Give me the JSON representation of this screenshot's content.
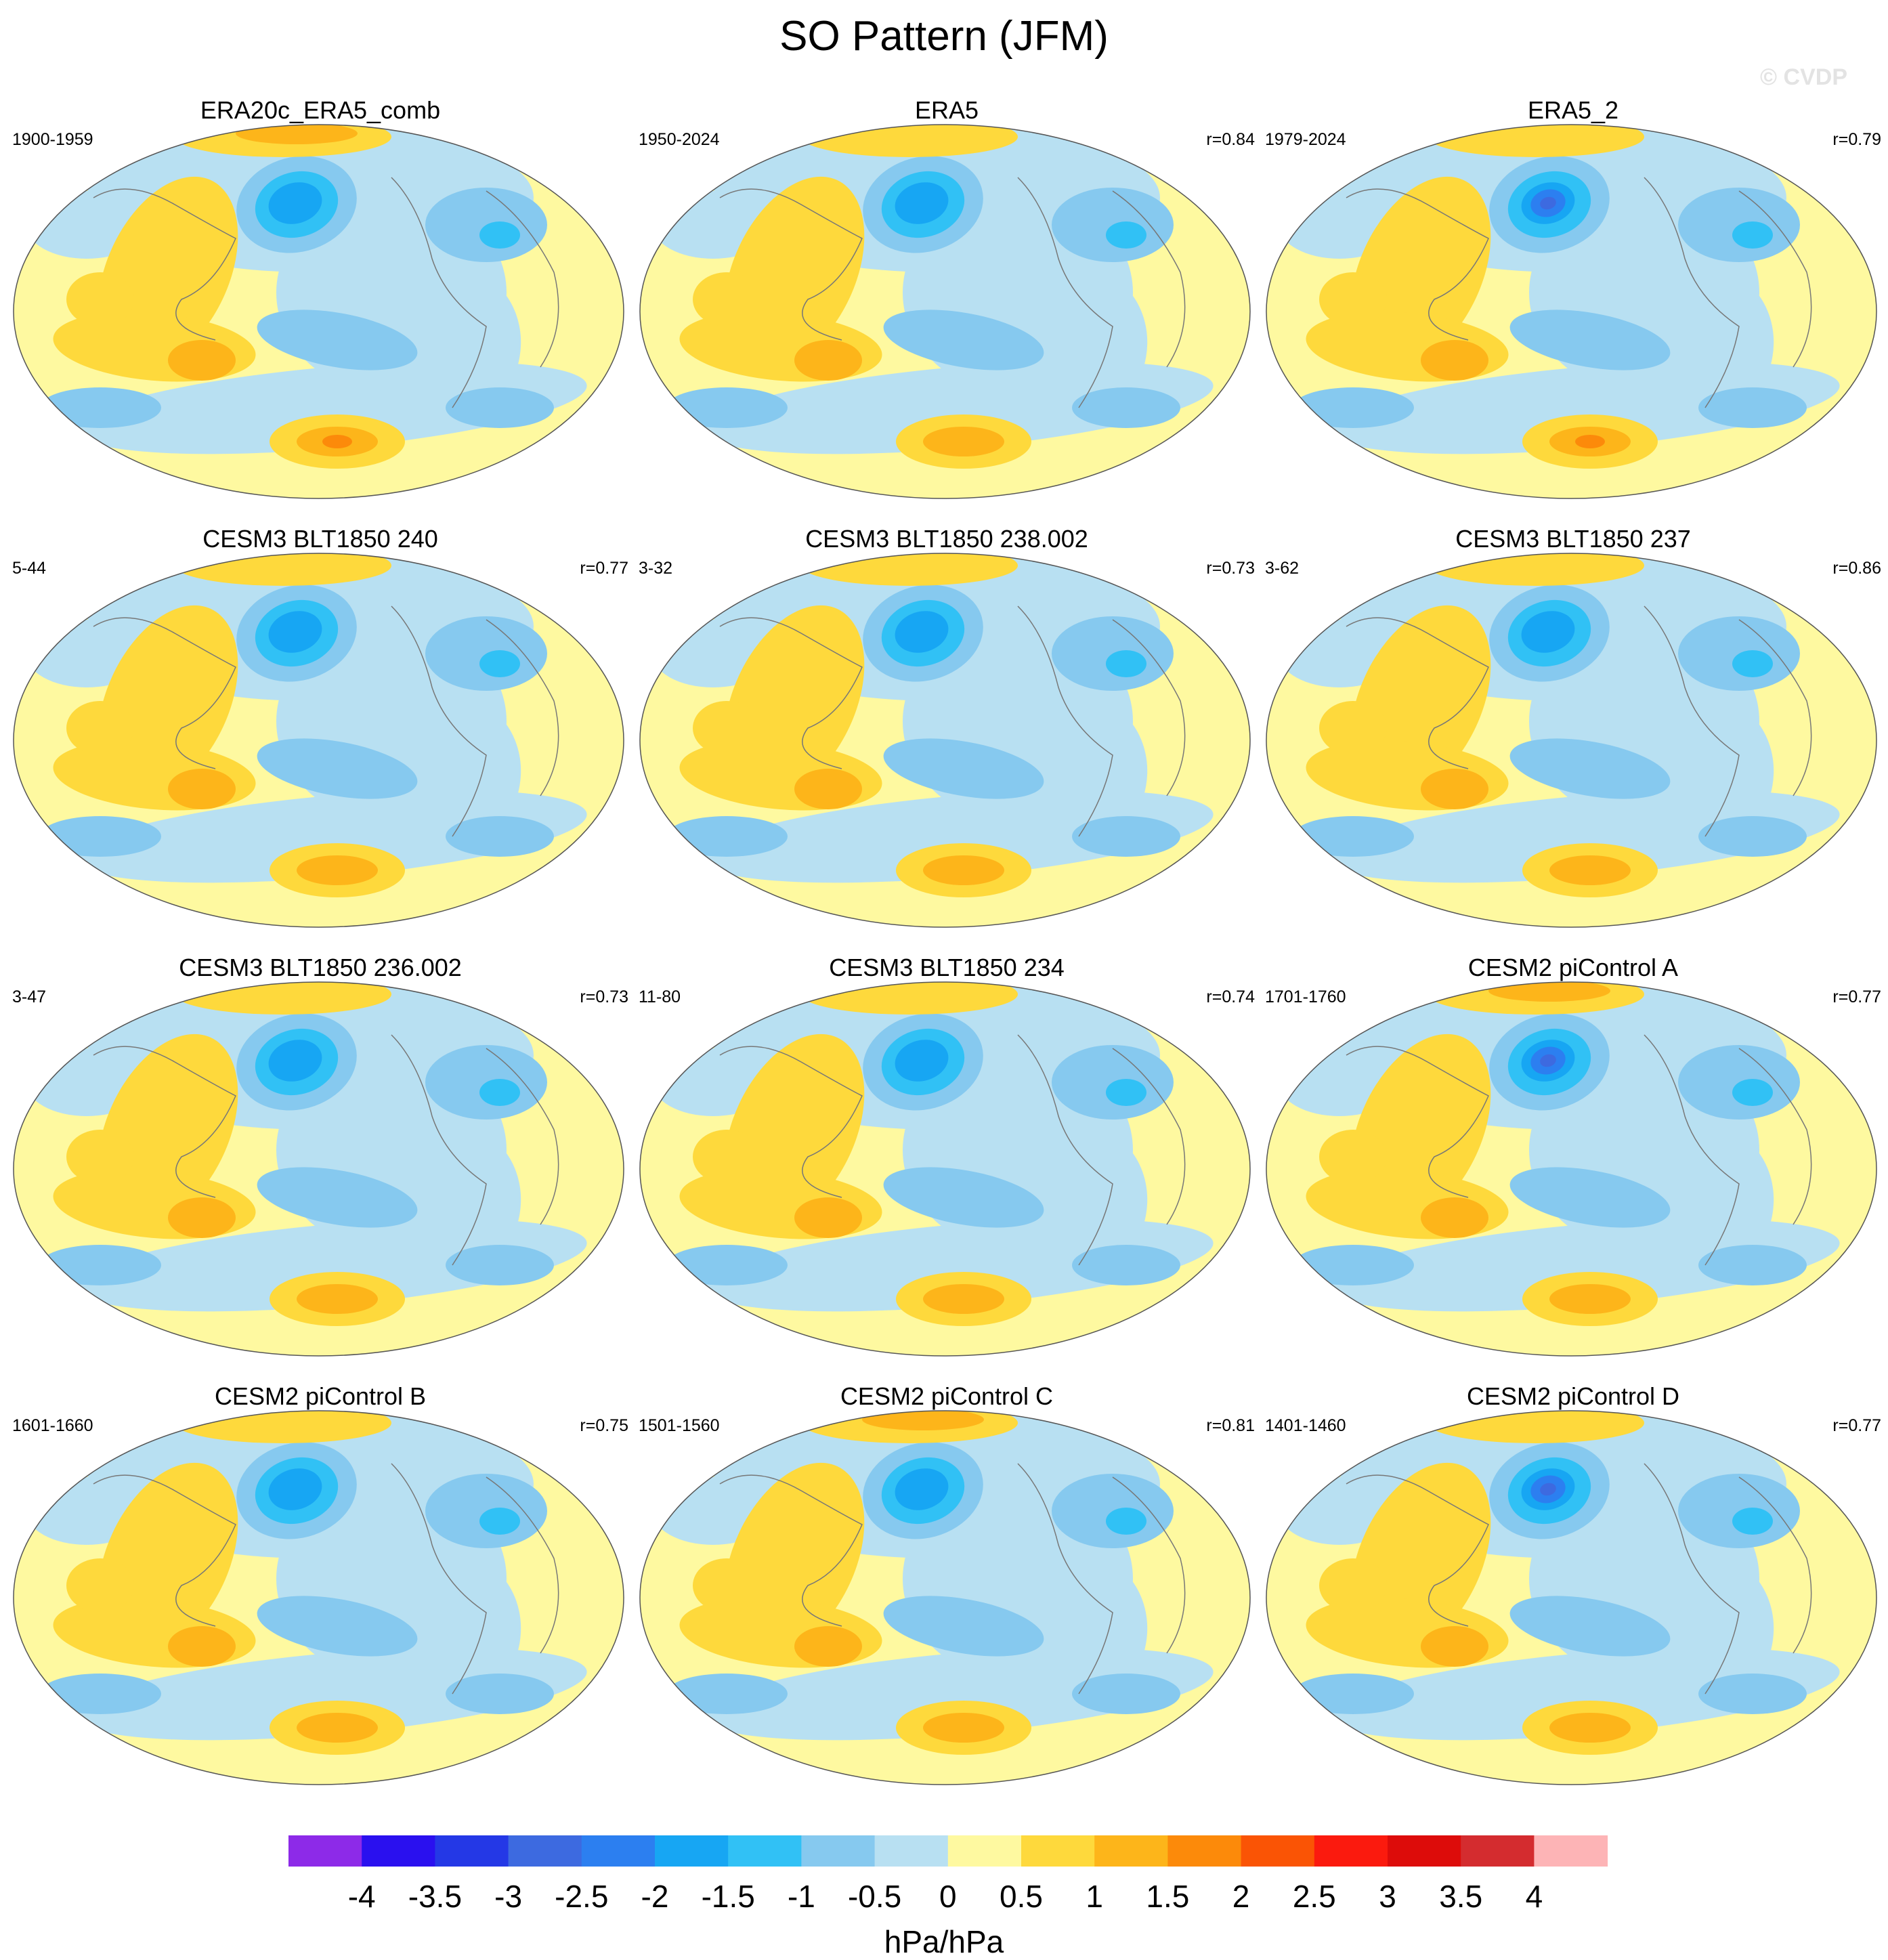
{
  "title": "SO Pattern (JFM)",
  "watermark": "© CVDP",
  "chart_data": {
    "type": "heatmap",
    "title": "SO Pattern (JFM)",
    "units": "hPa/hPa",
    "colorbar": {
      "levels": [
        -4,
        -3.5,
        -3,
        -2.5,
        -2,
        -1.5,
        -1,
        -0.5,
        0,
        0.5,
        1,
        1.5,
        2,
        2.5,
        3,
        3.5,
        4
      ],
      "tick_labels": [
        "-4",
        "-3.5",
        "-3",
        "-2.5",
        "-2",
        "-1.5",
        "-1",
        "-0.5",
        "0",
        "0.5",
        "1",
        "1.5",
        "2",
        "2.5",
        "3",
        "3.5",
        "4"
      ],
      "colors": [
        "#8d2ae8",
        "#2a10ef",
        "#2438e6",
        "#3d6ae0",
        "#2c7ff0",
        "#17a6f3",
        "#31c1f5",
        "#86c9ef",
        "#b8e0f2",
        "#fef9a0",
        "#fed93c",
        "#fdb51a",
        "#fc8a0a",
        "#fa5405",
        "#fb1a0e",
        "#dd0c0a",
        "#d42c2f",
        "#fdb4b6"
      ]
    },
    "panels": [
      {
        "title": "ERA20c_ERA5_comb",
        "period": "1900-1959",
        "r": ""
      },
      {
        "title": "ERA5",
        "period": "1950-2024",
        "r": "r=0.84"
      },
      {
        "title": "ERA5_2",
        "period": "1979-2024",
        "r": "r=0.79"
      },
      {
        "title": "CESM3 BLT1850 240",
        "period": "5-44",
        "r": "r=0.77"
      },
      {
        "title": "CESM3 BLT1850 238.002",
        "period": "3-32",
        "r": "r=0.73"
      },
      {
        "title": "CESM3 BLT1850 237",
        "period": "3-62",
        "r": "r=0.86"
      },
      {
        "title": "CESM3 BLT1850 236.002",
        "period": "3-47",
        "r": "r=0.73"
      },
      {
        "title": "CESM3 BLT1850 234",
        "period": "11-80",
        "r": "r=0.74"
      },
      {
        "title": "CESM2 piControl A",
        "period": "1701-1760",
        "r": "r=0.77"
      },
      {
        "title": "CESM2 piControl B",
        "period": "1601-1660",
        "r": "r=0.75"
      },
      {
        "title": "CESM2 piControl C",
        "period": "1501-1560",
        "r": "r=0.81"
      },
      {
        "title": "CESM2 piControl D",
        "period": "1401-1460",
        "r": "r=0.77"
      }
    ]
  }
}
